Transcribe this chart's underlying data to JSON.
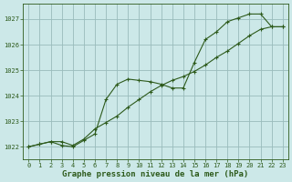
{
  "title": "Graphe pression niveau de la mer (hPa)",
  "bg_color": "#cce8e8",
  "grid_color": "#99bbbb",
  "line_color": "#2d5a1b",
  "xlim": [
    -0.5,
    23.5
  ],
  "ylim": [
    1021.5,
    1027.6
  ],
  "yticks": [
    1022,
    1023,
    1024,
    1025,
    1026,
    1027
  ],
  "xticks": [
    0,
    1,
    2,
    3,
    4,
    5,
    6,
    7,
    8,
    9,
    10,
    11,
    12,
    13,
    14,
    15,
    16,
    17,
    18,
    19,
    20,
    21,
    22,
    23
  ],
  "series1_x": [
    0,
    1,
    2,
    3,
    4,
    5,
    6,
    7,
    8,
    9,
    10,
    11,
    12,
    13,
    14,
    15,
    16,
    17,
    18,
    19,
    20,
    21,
    22,
    23
  ],
  "series1_y": [
    1022.0,
    1022.1,
    1022.2,
    1022.05,
    1022.0,
    1022.25,
    1022.5,
    1023.85,
    1024.45,
    1024.65,
    1024.6,
    1024.55,
    1024.45,
    1024.3,
    1024.3,
    1025.3,
    1026.2,
    1026.5,
    1026.9,
    1027.05,
    1027.2,
    1027.2,
    1026.7,
    1026.7
  ],
  "series2_x": [
    0,
    1,
    2,
    3,
    4,
    5,
    6,
    7,
    8,
    9,
    10,
    11,
    12,
    13,
    14,
    15,
    16,
    17,
    18,
    19,
    20,
    21,
    22,
    23
  ],
  "series2_y": [
    1022.0,
    1022.1,
    1022.2,
    1022.2,
    1022.05,
    1022.3,
    1022.7,
    1022.95,
    1023.2,
    1023.55,
    1023.85,
    1024.15,
    1024.4,
    1024.6,
    1024.75,
    1024.95,
    1025.2,
    1025.5,
    1025.75,
    1026.05,
    1026.35,
    1026.6,
    1026.7,
    1026.7
  ],
  "title_fontsize": 6.5,
  "tick_fontsize": 5
}
